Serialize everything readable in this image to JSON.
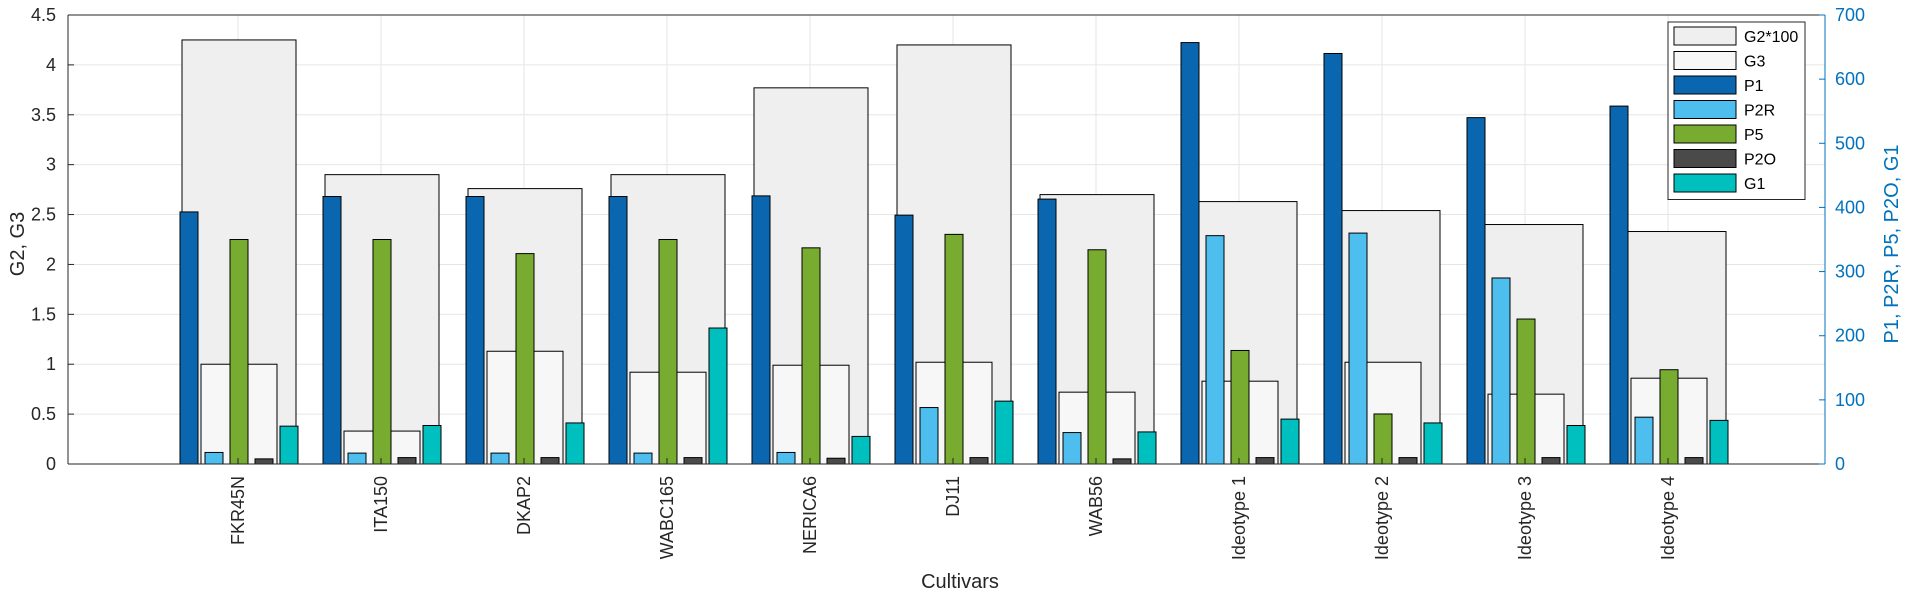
{
  "chart_data": {
    "type": "bar",
    "categories": [
      "FKR45N",
      "ITA150",
      "DKAP2",
      "WABC165",
      "NERICA6",
      "DJ11",
      "WAB56",
      "Ideotype 1",
      "Ideotype 2",
      "Ideotype 3",
      "Ideotype 4"
    ],
    "xlabel": "Cultivars",
    "ylabel_left": "G2, G3",
    "ylabel_right": "P1, P2R, P5, P2O, G1",
    "ylim_left": [
      0,
      4.5
    ],
    "yticks_left": [
      "0",
      "0.5",
      "1",
      "1.5",
      "2",
      "2.5",
      "3",
      "3.5",
      "4",
      "4.5"
    ],
    "ylim_right": [
      0,
      700
    ],
    "yticks_right": [
      "0",
      "100",
      "200",
      "300",
      "400",
      "500",
      "600",
      "700"
    ],
    "grid": true,
    "legend_position": "top-right",
    "series": [
      {
        "name": "G2*100",
        "axis": "left",
        "color": "#efefef",
        "values": [
          4.25,
          2.9,
          2.76,
          2.9,
          3.77,
          4.2,
          2.7,
          2.63,
          2.54,
          2.4,
          2.33
        ]
      },
      {
        "name": "G3",
        "axis": "left",
        "color": "#f7f7f7",
        "values": [
          1.0,
          0.33,
          1.13,
          0.92,
          0.99,
          1.02,
          0.72,
          0.83,
          1.02,
          0.7,
          0.86
        ]
      },
      {
        "name": "P1",
        "axis": "right",
        "color": "#0b66b0",
        "values": [
          393,
          417,
          417,
          417,
          418,
          388,
          413,
          657,
          640,
          540,
          558
        ]
      },
      {
        "name": "P2R",
        "axis": "right",
        "color": "#4dbeee",
        "values": [
          18,
          17,
          17,
          17,
          18,
          88,
          49,
          356,
          360,
          290,
          73
        ]
      },
      {
        "name": "P5",
        "axis": "right",
        "color": "#77ac30",
        "values": [
          350,
          350,
          328,
          350,
          337,
          358,
          334,
          177,
          78,
          226,
          147
        ]
      },
      {
        "name": "P2O",
        "axis": "right",
        "color": "#4a4a4a",
        "values": [
          8,
          10,
          10,
          10,
          9,
          10,
          8,
          10,
          10,
          10,
          10
        ]
      },
      {
        "name": "G1",
        "axis": "right",
        "color": "#00bfbf",
        "values": [
          59,
          60,
          64,
          212,
          43,
          98,
          50,
          70,
          64,
          60,
          68
        ]
      }
    ]
  },
  "colors": {
    "right_axis": "#0072bd",
    "left_axis": "#262626",
    "grid": "#e6e6e6"
  }
}
